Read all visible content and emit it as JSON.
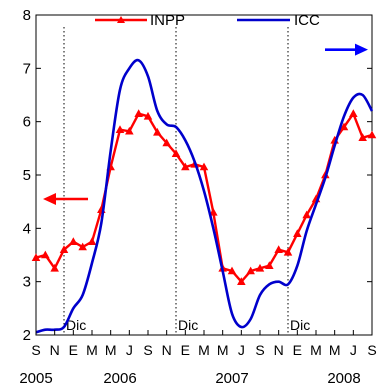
{
  "chart_data": {
    "type": "line",
    "title": "",
    "xlabel": "",
    "ylabel": "",
    "ylim": [
      2,
      8
    ],
    "yticks": [
      2,
      3,
      4,
      5,
      6,
      7,
      8
    ],
    "y2lim": [
      2,
      8
    ],
    "grid": false,
    "legend_position": "top",
    "month_ticks": [
      "S",
      "N",
      "E",
      "M",
      "M",
      "J",
      "S",
      "N",
      "E",
      "M",
      "M",
      "J",
      "S",
      "N",
      "E",
      "M",
      "M",
      "J",
      "S"
    ],
    "year_labels": [
      {
        "label": "2005",
        "x": 0
      },
      {
        "label": "2006",
        "x": 9
      },
      {
        "label": "2007",
        "x": 21
      },
      {
        "label": "2008",
        "x": 33
      }
    ],
    "vlines": [
      {
        "label": "Dic",
        "x": 3
      },
      {
        "label": "Dic",
        "x": 15
      },
      {
        "label": "Dic",
        "x": 27
      }
    ],
    "arrows": [
      {
        "direction": "left",
        "color": "#ff0000",
        "y": 4.55,
        "side": "left"
      },
      {
        "direction": "right",
        "color": "#0000ff",
        "y": 7.35,
        "side": "right"
      }
    ],
    "series": [
      {
        "name": "INPP",
        "color": "#ff0000",
        "marker": "triangle",
        "axis": "left",
        "x": [
          0,
          1,
          2,
          3,
          4,
          5,
          6,
          7,
          8,
          9,
          10,
          11,
          12,
          13,
          14,
          15,
          16,
          17,
          18,
          19,
          20,
          21,
          22,
          23,
          24,
          25,
          26,
          27,
          28,
          29,
          30,
          31,
          32,
          33,
          34,
          35,
          36
        ],
        "values": [
          3.45,
          3.5,
          3.25,
          3.6,
          3.75,
          3.65,
          3.75,
          4.35,
          5.15,
          5.85,
          5.82,
          6.15,
          6.1,
          5.8,
          5.6,
          5.4,
          5.15,
          5.2,
          5.15,
          4.3,
          3.25,
          3.2,
          3.0,
          3.2,
          3.25,
          3.3,
          3.6,
          3.55,
          3.9,
          4.25,
          4.55,
          5.0,
          5.65,
          5.9,
          6.15,
          5.7,
          5.75
        ]
      },
      {
        "name": "ICC",
        "color": "#0000cc",
        "marker": "none",
        "axis": "right",
        "x": [
          0,
          1,
          2,
          3,
          4,
          5,
          6,
          7,
          8,
          9,
          10,
          11,
          12,
          13,
          14,
          15,
          16,
          17,
          18,
          19,
          20,
          21,
          22,
          23,
          24,
          25,
          26,
          27,
          28,
          29,
          30,
          31,
          32,
          33,
          34,
          35,
          36
        ],
        "values": [
          2.05,
          2.1,
          2.1,
          2.15,
          2.5,
          2.75,
          3.35,
          4.1,
          5.45,
          6.6,
          7.0,
          7.15,
          6.85,
          6.2,
          5.95,
          5.9,
          5.65,
          5.25,
          4.7,
          4.0,
          3.2,
          2.4,
          2.15,
          2.3,
          2.75,
          2.95,
          3.0,
          2.95,
          3.3,
          3.95,
          4.45,
          4.95,
          5.55,
          6.1,
          6.45,
          6.5,
          6.2
        ]
      }
    ]
  }
}
